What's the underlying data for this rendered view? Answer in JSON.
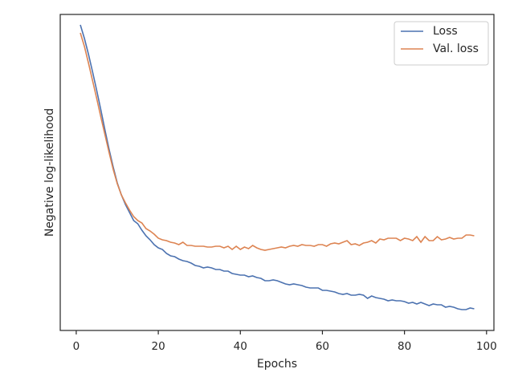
{
  "chart_data": {
    "type": "line",
    "x_label": "Epochs",
    "y_label": "Negative log-likelihood",
    "x": [
      1,
      2,
      3,
      4,
      5,
      6,
      7,
      8,
      9,
      10,
      11,
      12,
      13,
      14,
      15,
      16,
      17,
      18,
      19,
      20,
      21,
      22,
      23,
      24,
      25,
      26,
      27,
      28,
      29,
      30,
      31,
      32,
      33,
      34,
      35,
      36,
      37,
      38,
      39,
      40,
      41,
      42,
      43,
      44,
      45,
      46,
      47,
      48,
      49,
      50,
      51,
      52,
      53,
      54,
      55,
      56,
      57,
      58,
      59,
      60,
      61,
      62,
      63,
      64,
      65,
      66,
      67,
      68,
      69,
      70,
      71,
      72,
      73,
      74,
      75,
      76,
      77,
      78,
      79,
      80,
      81,
      82,
      83,
      84,
      85,
      86,
      87,
      88,
      89,
      90,
      91,
      92,
      93,
      94,
      95,
      96,
      97
    ],
    "series": [
      {
        "name": "Loss",
        "color": "#4c72b0",
        "values": [
          381,
          364,
          344,
          322,
          299,
          275,
          250,
          226,
          204,
          184,
          169,
          157,
          147,
          137,
          133,
          125,
          118,
          113,
          107,
          103,
          101,
          96,
          93,
          92,
          89,
          87,
          86,
          84,
          81,
          80,
          78,
          79,
          78,
          76,
          76,
          74,
          74,
          71,
          70,
          69,
          69,
          67,
          68,
          66,
          65,
          62,
          62,
          63,
          62,
          60,
          58,
          57,
          58,
          57,
          56,
          54,
          53,
          53,
          53,
          50,
          50,
          49,
          48,
          46,
          45,
          46,
          44,
          44,
          45,
          44,
          40,
          43,
          41,
          40,
          39,
          37,
          38,
          37,
          37,
          36,
          34,
          35,
          33,
          35,
          33,
          31,
          33,
          32,
          32,
          29,
          30,
          29,
          27,
          26,
          26,
          28,
          27
        ]
      },
      {
        "name": "Val. loss",
        "color": "#dd8452",
        "values": [
          371,
          354,
          333,
          311,
          289,
          266,
          244,
          222,
          201,
          183,
          169,
          159,
          150,
          142,
          137,
          134,
          127,
          124,
          120,
          115,
          113,
          112,
          110,
          109,
          107,
          110,
          106,
          106,
          105,
          105,
          105,
          104,
          104,
          105,
          105,
          103,
          105,
          101,
          105,
          101,
          104,
          102,
          106,
          103,
          101,
          100,
          101,
          102,
          103,
          104,
          103,
          105,
          106,
          105,
          107,
          106,
          106,
          105,
          107,
          107,
          105,
          108,
          109,
          108,
          110,
          112,
          107,
          108,
          106,
          109,
          110,
          112,
          109,
          114,
          113,
          115,
          115,
          115,
          112,
          115,
          114,
          112,
          117,
          110,
          117,
          112,
          112,
          117,
          113,
          114,
          116,
          114,
          115,
          115,
          119,
          119,
          118
        ]
      }
    ],
    "xlim": [
      -3.9,
      101.8
    ],
    "xticks": [
      0,
      20,
      40,
      60,
      80,
      100
    ],
    "ylim": [
      0,
      394
    ],
    "legend": "upper right"
  }
}
